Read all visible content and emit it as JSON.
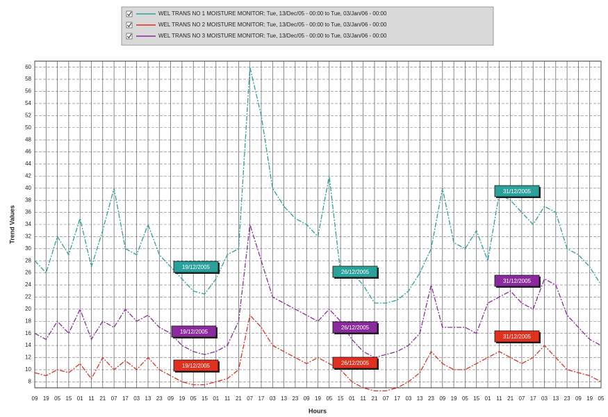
{
  "chart_data": {
    "type": "line",
    "x_label": "Hours",
    "y_label": "Trend Values",
    "categories": [
      "09",
      "19",
      "05",
      "15",
      "01",
      "11",
      "21",
      "07",
      "17",
      "03",
      "13",
      "23",
      "09",
      "19",
      "05",
      "15",
      "01",
      "11",
      "21",
      "07",
      "17",
      "03",
      "13",
      "23",
      "09",
      "19",
      "05",
      "15",
      "01",
      "11",
      "21",
      "07",
      "17",
      "03",
      "13",
      "23",
      "09",
      "19",
      "05",
      "15",
      "01",
      "11",
      "21",
      "07",
      "17",
      "03",
      "13",
      "23",
      "09",
      "19",
      "05"
    ],
    "ylim": [
      7,
      61
    ],
    "yticks": [
      8,
      10,
      12,
      14,
      16,
      18,
      20,
      22,
      24,
      26,
      28,
      30,
      32,
      34,
      36,
      38,
      40,
      42,
      44,
      46,
      48,
      50,
      52,
      54,
      56,
      58,
      60
    ],
    "grid": true,
    "series": [
      {
        "name": "WEL TRANS NO 1 MOISTURE MONITOR: Tue, 13/Dec/05 - 00:00 to Tue, 03/Jan/06 - 00:00",
        "color": "#2aa19a",
        "values": [
          28,
          26,
          32,
          29,
          35,
          27,
          33,
          40,
          30,
          29,
          34,
          29,
          27,
          25,
          23,
          22.5,
          25,
          29,
          30,
          60,
          52,
          40,
          37,
          35,
          34,
          32,
          42,
          26,
          26,
          24,
          21,
          21,
          21.5,
          23,
          26,
          30,
          40,
          31,
          30,
          33,
          28,
          39,
          38,
          36,
          34,
          37,
          36,
          30,
          29,
          27,
          24
        ],
        "labels": [
          "19/12/2005",
          "26/12/2005",
          "31/12/2005"
        ]
      },
      {
        "name": "WEL TRANS NO 2 MOISTURE MONITOR: Tue, 13/Dec/05 - 00:00 to Tue, 03/Jan/06 - 00:00",
        "color": "#e0301e",
        "values": [
          9.5,
          9,
          10,
          9.5,
          11,
          8.5,
          12,
          10,
          11.5,
          10,
          12,
          10,
          9,
          8,
          7.5,
          7.5,
          8,
          8.5,
          10,
          19,
          17,
          14,
          13,
          12,
          11,
          12,
          11,
          10,
          8,
          7,
          6.5,
          6.5,
          7,
          8,
          9.5,
          13,
          11,
          10,
          10,
          11,
          12,
          13,
          12,
          11,
          12,
          14,
          12,
          10,
          9.5,
          9,
          8
        ],
        "labels": [
          "19/12/2005",
          "26/12/2005",
          "31/12/2005"
        ]
      },
      {
        "name": "WEL TRANS NO 3 MOISTURE MONITOR: Tue, 13/Dec/05 - 00:00 to Tue, 03/Jan/06 - 00:00",
        "color": "#8b2a9e",
        "values": [
          16,
          15,
          18,
          16,
          20,
          15,
          18,
          17,
          20,
          18,
          19,
          17,
          16,
          14,
          13,
          12.5,
          13,
          14,
          18,
          34,
          28,
          22,
          21,
          20,
          19,
          18,
          20,
          18,
          15,
          13,
          12,
          12.5,
          13,
          14,
          16,
          24,
          17,
          17,
          17,
          16,
          21,
          22,
          23,
          21,
          20,
          25,
          24,
          19,
          17,
          15,
          14
        ],
        "labels": [
          "19/12/2005",
          "26/12/2005",
          "31/12/2005"
        ]
      }
    ]
  }
}
